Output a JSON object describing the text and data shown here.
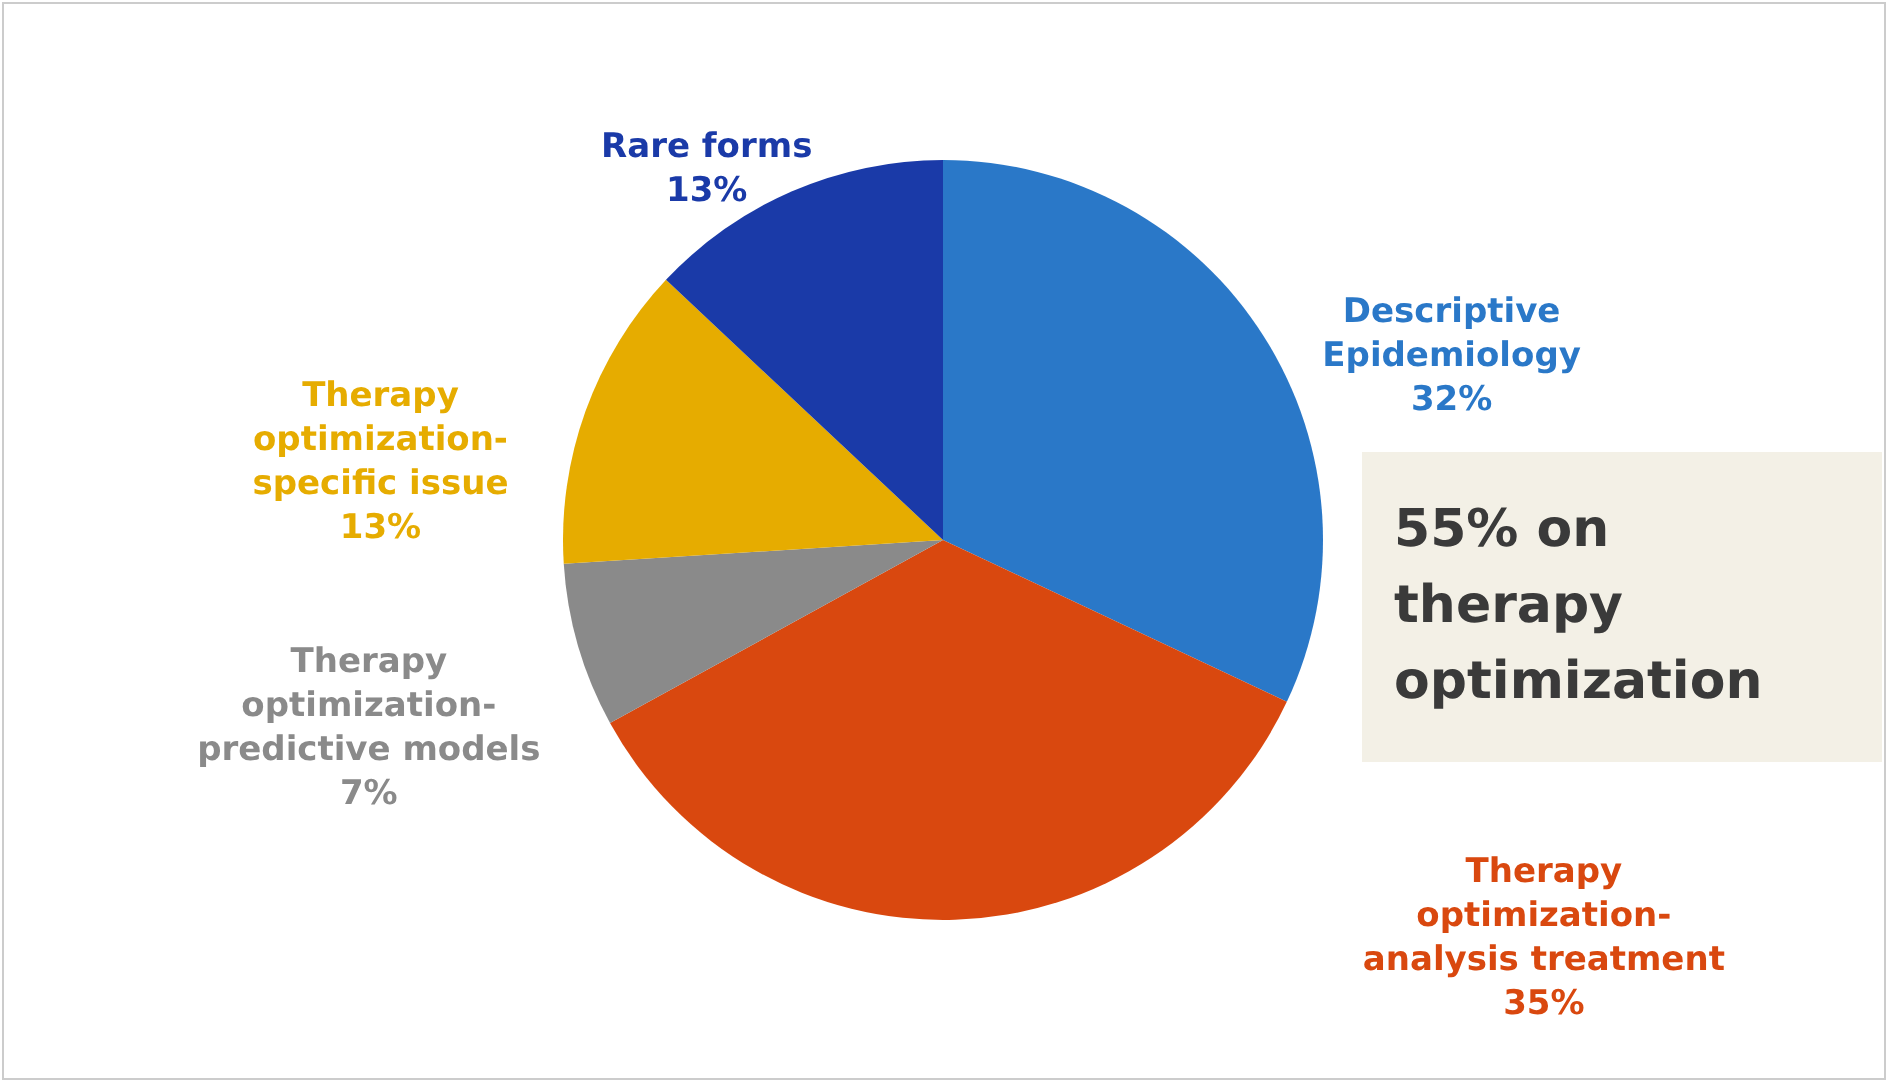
{
  "chart_data": {
    "type": "pie",
    "categories": [
      "Descriptive\nEpidemiology",
      "Therapy\noptimization-\nanalysis treatment",
      "Therapy\noptimization-\npredictive models",
      "Therapy\noptimization-\nspecific issue",
      "Rare forms"
    ],
    "values": [
      32,
      35,
      7,
      13,
      13
    ],
    "value_labels": [
      "32%",
      "35%",
      "7%",
      "13%",
      "13%"
    ],
    "colors": [
      "#2a78c8",
      "#d9480f",
      "#8a8a8a",
      "#e6ac00",
      "#1a3aa8"
    ],
    "annotations": [
      "55% on\ntherapy\noptimization"
    ],
    "legend": false
  }
}
